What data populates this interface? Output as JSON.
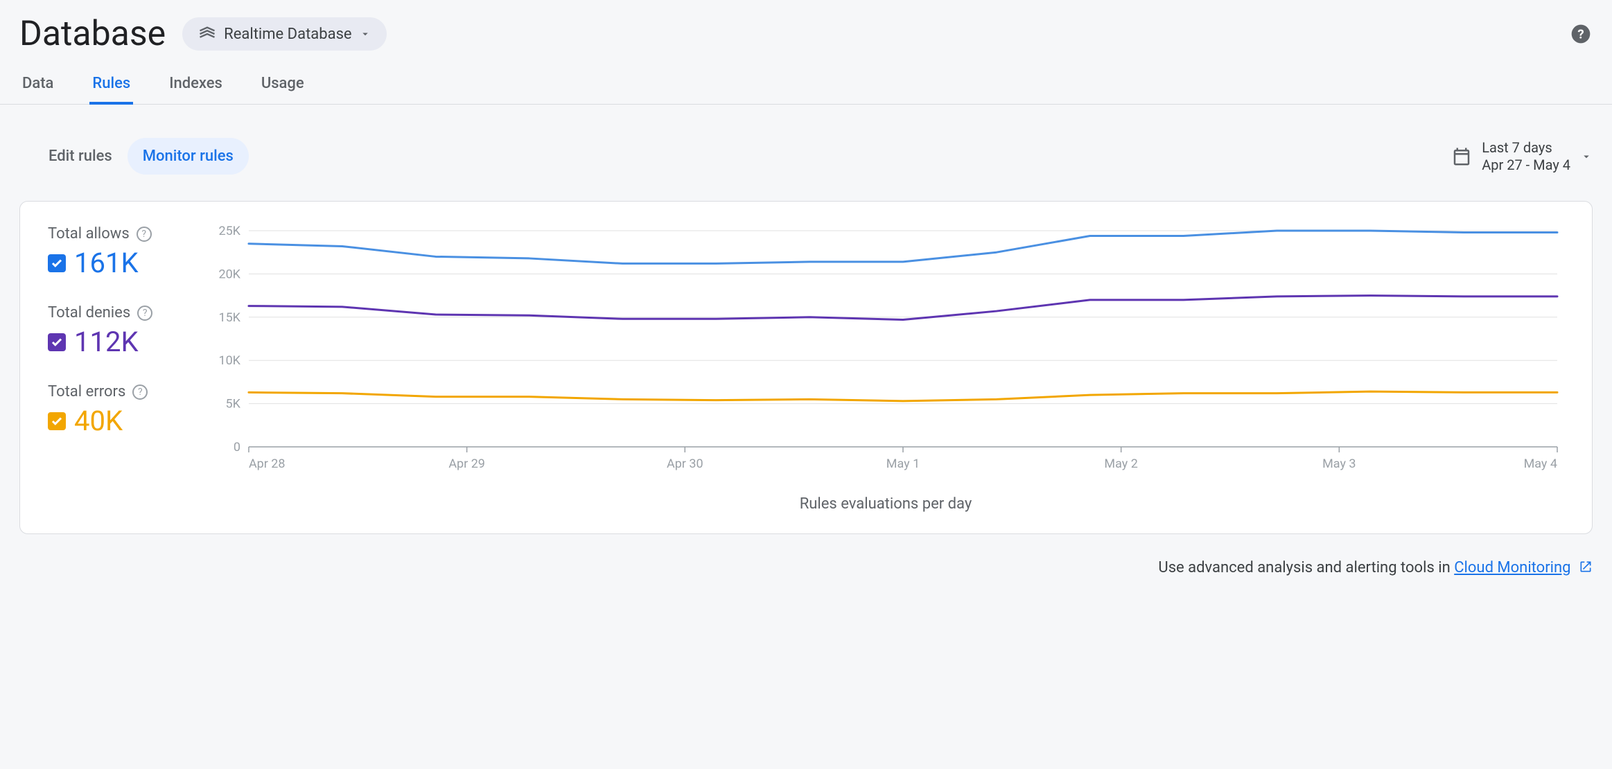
{
  "header": {
    "title": "Database",
    "selector_label": "Realtime Database"
  },
  "tabs": [
    {
      "label": "Data",
      "active": false
    },
    {
      "label": "Rules",
      "active": true
    },
    {
      "label": "Indexes",
      "active": false
    },
    {
      "label": "Usage",
      "active": false
    }
  ],
  "mode": {
    "edit_label": "Edit rules",
    "monitor_label": "Monitor rules"
  },
  "date_range": {
    "line1": "Last 7 days",
    "line2": "Apr 27 - May 4"
  },
  "legend": {
    "allows": {
      "label": "Total allows",
      "value": "161K",
      "color": "#1a73e8"
    },
    "denies": {
      "label": "Total denies",
      "value": "112K",
      "color": "#5e35b1"
    },
    "errors": {
      "label": "Total errors",
      "value": "40K",
      "color": "#f2a600"
    }
  },
  "chart": {
    "type": "line",
    "x_labels": [
      "Apr 28",
      "Apr 29",
      "Apr 30",
      "May 1",
      "May 2",
      "May 3",
      "May 4"
    ],
    "y_ticks": [
      0,
      "5K",
      "10K",
      "15K",
      "20K",
      "25K"
    ],
    "y_tick_values": [
      0,
      5000,
      10000,
      15000,
      20000,
      25000
    ],
    "ylim": [
      0,
      25000
    ],
    "x_axis_title": "Rules evaluations per day",
    "grid_color": "#e0e0e0",
    "axis_color": "#9aa0a6",
    "tick_label_color": "#9aa0a6",
    "tick_fontsize": 18,
    "line_width": 3,
    "background_color": "#ffffff",
    "series": {
      "allows": {
        "color": "#4a90e2",
        "values": [
          23500,
          23200,
          22000,
          21800,
          21200,
          21200,
          21400,
          21400,
          22500,
          24400,
          24400,
          25000,
          25000,
          24800,
          24800
        ]
      },
      "denies": {
        "color": "#5e35b1",
        "values": [
          16300,
          16200,
          15300,
          15200,
          14800,
          14800,
          15000,
          14700,
          15700,
          17000,
          17000,
          17400,
          17500,
          17400,
          17400
        ]
      },
      "errors": {
        "color": "#f2a600",
        "values": [
          6300,
          6200,
          5800,
          5800,
          5500,
          5400,
          5500,
          5300,
          5500,
          6000,
          6200,
          6200,
          6400,
          6300,
          6300
        ]
      }
    }
  },
  "footer": {
    "text": "Use advanced analysis and alerting tools in ",
    "link_text": "Cloud Monitoring"
  }
}
